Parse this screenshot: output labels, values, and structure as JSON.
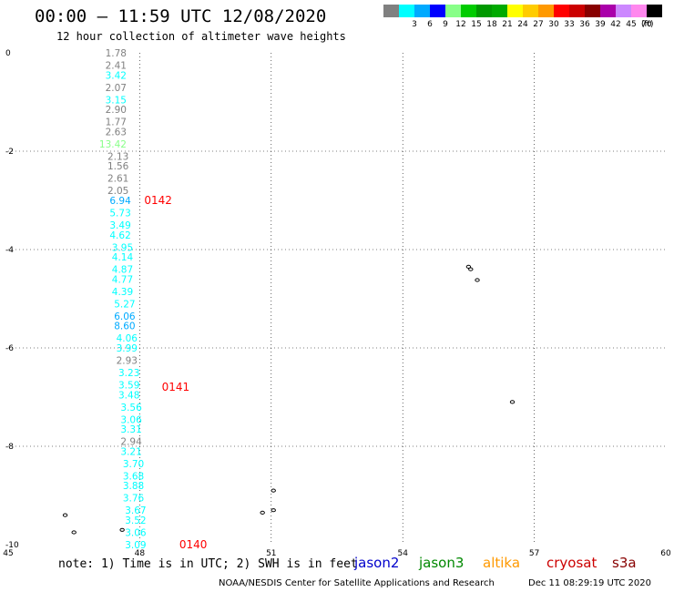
{
  "header": {
    "title": "00:00 — 11:59 UTC 12/08/2020",
    "subtitle": "12 hour collection of altimeter wave heights"
  },
  "legend": {
    "unit": "(ft)",
    "items": [
      {
        "label": "",
        "color": "#808080"
      },
      {
        "label": "3",
        "color": "#00ffff"
      },
      {
        "label": "6",
        "color": "#00aaff"
      },
      {
        "label": "9",
        "color": "#0000ff"
      },
      {
        "label": "12",
        "color": "#88ff88"
      },
      {
        "label": "15",
        "color": "#00cc00"
      },
      {
        "label": "18",
        "color": "#009900"
      },
      {
        "label": "21",
        "color": "#00aa00"
      },
      {
        "label": "24",
        "color": "#ffff00"
      },
      {
        "label": "27",
        "color": "#ffcc00"
      },
      {
        "label": "30",
        "color": "#ff9900"
      },
      {
        "label": "33",
        "color": "#ff0000"
      },
      {
        "label": "36",
        "color": "#cc0000"
      },
      {
        "label": "39",
        "color": "#880000"
      },
      {
        "label": "42",
        "color": "#aa00aa"
      },
      {
        "label": "45",
        "color": "#cc88ff"
      },
      {
        "label": "70",
        "color": "#ff88ee"
      },
      {
        "label": "",
        "color": "#000000"
      }
    ]
  },
  "map": {
    "lon_range": [
      45,
      60
    ],
    "lat_range": [
      -10,
      0
    ],
    "x_ticks": [
      "45",
      "48",
      "51",
      "54",
      "57",
      "60"
    ],
    "y_ticks": [
      "0",
      "-2",
      "-4",
      "-6",
      "-8",
      "-10"
    ],
    "gridlines": "dotted",
    "pass_labels": [
      {
        "label": "0142",
        "lon": 48.0,
        "lat": -3.0
      },
      {
        "label": "0141",
        "lon": 48.4,
        "lat": -6.8
      },
      {
        "label": "0140",
        "lon": 48.8,
        "lat": -10.0
      }
    ],
    "heights": [
      {
        "v": "1.78",
        "lon": 47.7,
        "lat": 0.0,
        "c": "#808080"
      },
      {
        "v": "2.41",
        "lon": 47.7,
        "lat": -0.25,
        "c": "#808080"
      },
      {
        "v": "3.42",
        "lon": 47.7,
        "lat": -0.45,
        "c": "#00ffff"
      },
      {
        "v": "2.07",
        "lon": 47.7,
        "lat": -0.7,
        "c": "#808080"
      },
      {
        "v": "3.15",
        "lon": 47.7,
        "lat": -0.95,
        "c": "#00ffff"
      },
      {
        "v": "2.90",
        "lon": 47.7,
        "lat": -1.15,
        "c": "#808080"
      },
      {
        "v": "1.77",
        "lon": 47.7,
        "lat": -1.4,
        "c": "#808080"
      },
      {
        "v": "2.63",
        "lon": 47.7,
        "lat": -1.6,
        "c": "#808080"
      },
      {
        "v": "13.42",
        "lon": 47.7,
        "lat": -1.85,
        "c": "#88ff88"
      },
      {
        "v": "2.13",
        "lon": 47.75,
        "lat": -2.1,
        "c": "#808080"
      },
      {
        "v": "1.56",
        "lon": 47.75,
        "lat": -2.3,
        "c": "#808080"
      },
      {
        "v": "2.61",
        "lon": 47.75,
        "lat": -2.55,
        "c": "#808080"
      },
      {
        "v": "2.05",
        "lon": 47.75,
        "lat": -2.8,
        "c": "#808080"
      },
      {
        "v": "6.94",
        "lon": 47.8,
        "lat": -3.0,
        "c": "#00aaff"
      },
      {
        "v": "5.73",
        "lon": 47.8,
        "lat": -3.25,
        "c": "#00ffff"
      },
      {
        "v": "3.49",
        "lon": 47.8,
        "lat": -3.5,
        "c": "#00ffff"
      },
      {
        "v": "4.62",
        "lon": 47.8,
        "lat": -3.7,
        "c": "#00ffff"
      },
      {
        "v": "3.95",
        "lon": 47.85,
        "lat": -3.95,
        "c": "#00ffff"
      },
      {
        "v": "4.14",
        "lon": 47.85,
        "lat": -4.15,
        "c": "#00ffff"
      },
      {
        "v": "4.87",
        "lon": 47.85,
        "lat": -4.4,
        "c": "#00ffff"
      },
      {
        "v": "4.77",
        "lon": 47.85,
        "lat": -4.6,
        "c": "#00ffff"
      },
      {
        "v": "4.39",
        "lon": 47.85,
        "lat": -4.85,
        "c": "#00ffff"
      },
      {
        "v": "5.27",
        "lon": 47.9,
        "lat": -5.1,
        "c": "#00ffff"
      },
      {
        "v": "6.06",
        "lon": 47.9,
        "lat": -5.35,
        "c": "#00aaff"
      },
      {
        "v": "8.60",
        "lon": 47.9,
        "lat": -5.55,
        "c": "#00aaff"
      },
      {
        "v": "4.06",
        "lon": 47.95,
        "lat": -5.8,
        "c": "#00ffff"
      },
      {
        "v": "3.99",
        "lon": 47.95,
        "lat": -6.0,
        "c": "#00ffff"
      },
      {
        "v": "2.93",
        "lon": 47.95,
        "lat": -6.25,
        "c": "#808080"
      },
      {
        "v": "3.23",
        "lon": 48.0,
        "lat": -6.5,
        "c": "#00ffff"
      },
      {
        "v": "3.59",
        "lon": 48.0,
        "lat": -6.75,
        "c": "#00ffff"
      },
      {
        "v": "3.48",
        "lon": 48.0,
        "lat": -6.95,
        "c": "#00ffff"
      },
      {
        "v": "3.56",
        "lon": 48.05,
        "lat": -7.2,
        "c": "#00ffff"
      },
      {
        "v": "3.06",
        "lon": 48.05,
        "lat": -7.45,
        "c": "#00ffff"
      },
      {
        "v": "3.31",
        "lon": 48.05,
        "lat": -7.65,
        "c": "#00ffff"
      },
      {
        "v": "2.94",
        "lon": 48.05,
        "lat": -7.9,
        "c": "#808080"
      },
      {
        "v": "3.21",
        "lon": 48.05,
        "lat": -8.1,
        "c": "#00ffff"
      },
      {
        "v": "3.70",
        "lon": 48.1,
        "lat": -8.35,
        "c": "#00ffff"
      },
      {
        "v": "3.68",
        "lon": 48.1,
        "lat": -8.6,
        "c": "#00ffff"
      },
      {
        "v": "3.88",
        "lon": 48.1,
        "lat": -8.8,
        "c": "#00ffff"
      },
      {
        "v": "3.76",
        "lon": 48.1,
        "lat": -9.05,
        "c": "#00ffff"
      },
      {
        "v": "3.67",
        "lon": 48.15,
        "lat": -9.3,
        "c": "#00ffff"
      },
      {
        "v": "3.52",
        "lon": 48.15,
        "lat": -9.5,
        "c": "#00ffff"
      },
      {
        "v": "3.06",
        "lon": 48.15,
        "lat": -9.75,
        "c": "#00ffff"
      },
      {
        "v": "3.09",
        "lon": 48.15,
        "lat": -10.0,
        "c": "#00ffff"
      }
    ],
    "islands": [
      {
        "lon": 55.5,
        "lat": -4.35
      },
      {
        "lon": 55.55,
        "lat": -4.4
      },
      {
        "lon": 55.7,
        "lat": -4.62
      },
      {
        "lon": 56.5,
        "lat": -7.1
      },
      {
        "lon": 51.05,
        "lat": -8.9
      },
      {
        "lon": 51.05,
        "lat": -9.3
      },
      {
        "lon": 50.8,
        "lat": -9.35
      },
      {
        "lon": 46.3,
        "lat": -9.4
      },
      {
        "lon": 46.5,
        "lat": -9.75
      },
      {
        "lon": 47.6,
        "lat": -9.7
      }
    ]
  },
  "footer": {
    "note": "note: 1) Time is in UTC; 2) SWH is in feet",
    "satellites": [
      {
        "name": "jason2",
        "color": "#0000cc"
      },
      {
        "name": "jason3",
        "color": "#008800"
      },
      {
        "name": "altika",
        "color": "#ff9900"
      },
      {
        "name": "cryosat",
        "color": "#cc0000"
      },
      {
        "name": "s3a",
        "color": "#880000"
      }
    ],
    "credit": "NOAA/NESDIS Center for Satellite Applications and Research",
    "timestamp": "Dec 11 08:29:19 UTC 2020"
  }
}
